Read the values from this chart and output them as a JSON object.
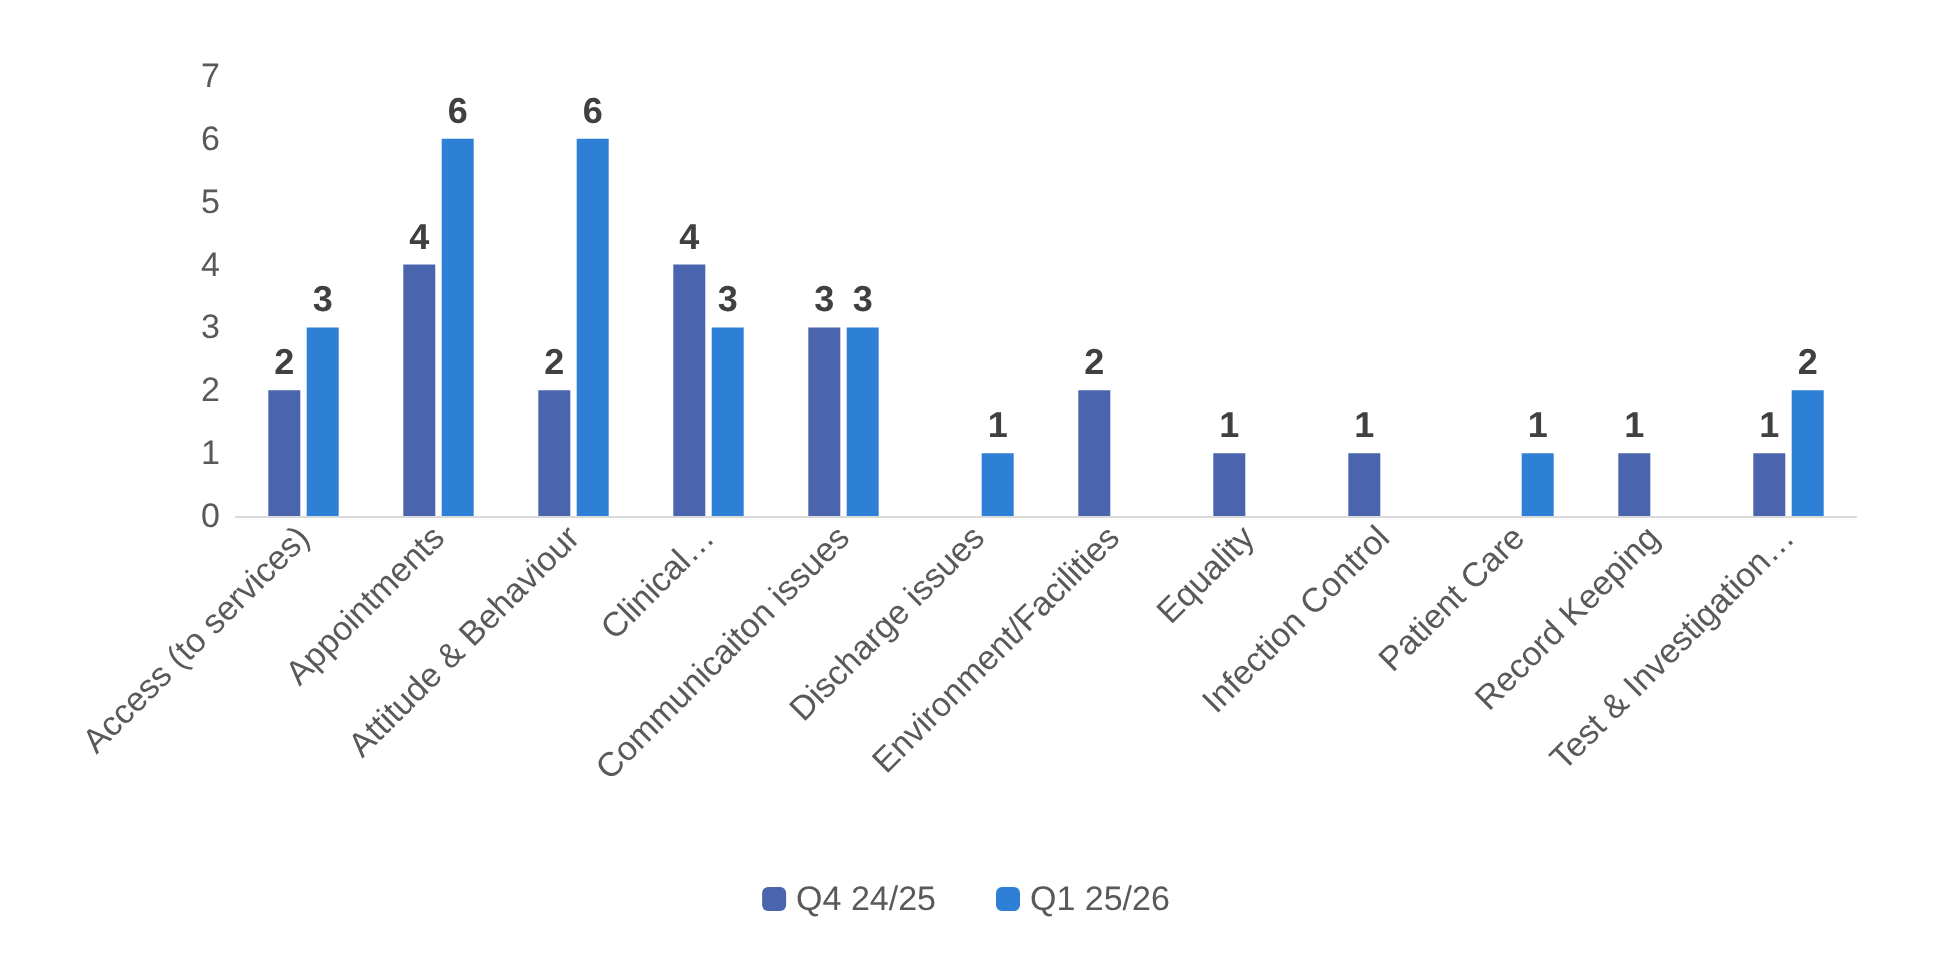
{
  "chart_data": {
    "type": "bar",
    "categories": [
      "Access (to services)",
      "Appointments",
      "Attitude & Behaviour",
      "Clinical…",
      "Communicaiton issues",
      "Discharge issues",
      "Environment/Facilities",
      "Equality",
      "Infection Control",
      "Patient Care",
      "Record Keeping",
      "Test & Investigation…"
    ],
    "series": [
      {
        "name": "Q4 24/25",
        "color": "#4a65ad",
        "values": [
          2,
          4,
          2,
          4,
          3,
          null,
          2,
          1,
          1,
          null,
          1,
          1
        ]
      },
      {
        "name": "Q1 25/26",
        "color": "#2e7fd6",
        "values": [
          3,
          6,
          6,
          3,
          3,
          1,
          null,
          null,
          null,
          1,
          null,
          2
        ]
      }
    ],
    "ylim": [
      0,
      7
    ],
    "yticks": [
      0,
      1,
      2,
      3,
      4,
      5,
      6,
      7
    ],
    "grid": false,
    "legend": "bottom",
    "data_labels": true
  }
}
